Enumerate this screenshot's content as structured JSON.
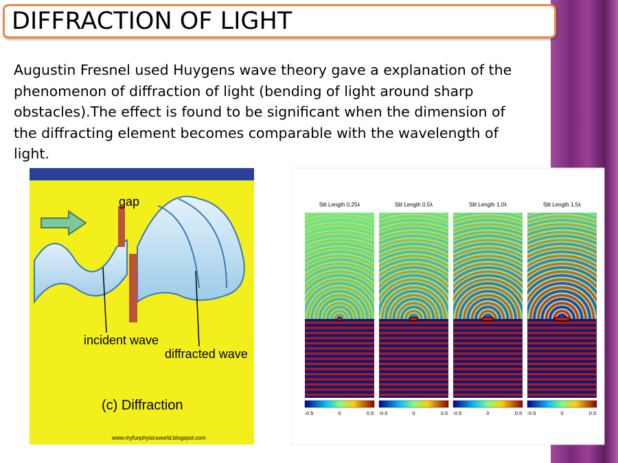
{
  "title": "DIFFRACTION OF LIGHT",
  "paragraph": [
    "Augustin Fresnel used Huygens wave theory gave a explanation of the",
    "phenomenon of diffraction of light (bending of light around sharp",
    "obstacles).The effect is found to be significant when the dimension of",
    "the diffracting element becomes comparable with the wavelength of",
    "light."
  ],
  "left_image": {
    "labels": {
      "gap": "gap",
      "incident": "incident wave",
      "diffracted": "diffracted wave",
      "caption": "(c)  Diffraction",
      "source": "www.myfunphysicsworld.blogspot.com"
    }
  },
  "right_image": {
    "panels": [
      "Slit Length 0.25λ",
      "Slit Length 0.5λ",
      "Slit Length 1.0λ",
      "Slit Length 1.5λ"
    ],
    "colorbar_ticks": [
      "-0.5",
      "0",
      "0.5"
    ]
  }
}
